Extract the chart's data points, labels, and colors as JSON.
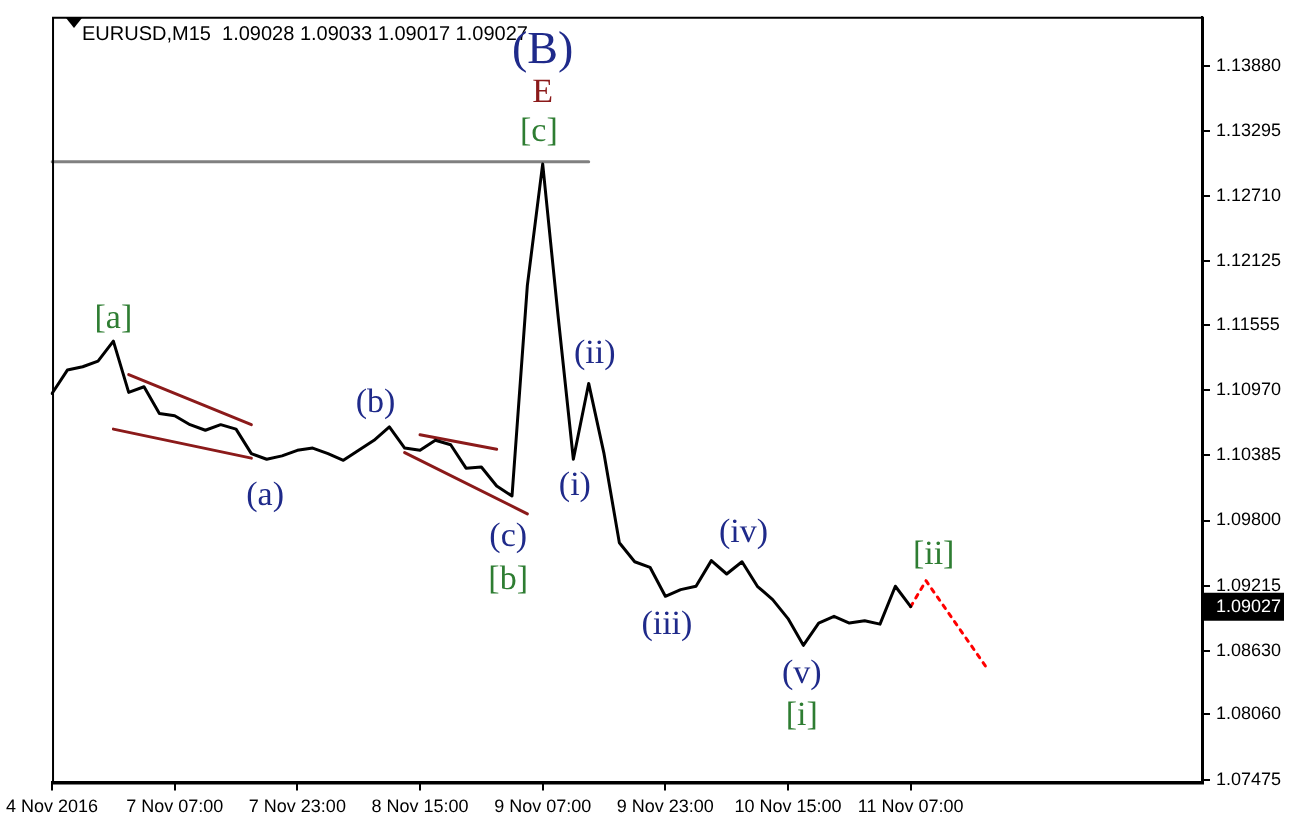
{
  "chart_data": {
    "type": "line",
    "title": "EURUSD,M15  1.09028 1.09033 1.09017 1.09027",
    "legend": false,
    "grid": false,
    "marker": "none",
    "categories": [
      "4 Nov 2016",
      null,
      null,
      null,
      null,
      null,
      null,
      null,
      "7 Nov 07:00",
      null,
      null,
      null,
      null,
      null,
      null,
      null,
      "7 Nov 23:00",
      null,
      null,
      null,
      null,
      null,
      null,
      null,
      "8 Nov 15:00",
      null,
      null,
      null,
      null,
      null,
      null,
      null,
      "9 Nov 07:00",
      null,
      null,
      null,
      null,
      null,
      null,
      null,
      "9 Nov 23:00",
      null,
      null,
      null,
      null,
      null,
      null,
      null,
      "10 Nov 15:00",
      null,
      null,
      null,
      null,
      null,
      null,
      null,
      "11 Nov 07:00",
      null,
      null,
      null,
      null,
      null,
      null,
      null,
      null,
      null,
      null,
      null,
      null,
      null,
      null,
      null,
      null,
      null,
      null,
      null
    ],
    "ylim": [
      1.0745,
      1.1432
    ],
    "yticks": [
      {
        "value": 1.1388,
        "label": "1.13880"
      },
      {
        "value": 1.13295,
        "label": "1.13295"
      },
      {
        "value": 1.1271,
        "label": "1.12710"
      },
      {
        "value": 1.12125,
        "label": "1.12125"
      },
      {
        "value": 1.11555,
        "label": "1.11555"
      },
      {
        "value": 1.1097,
        "label": "1.10970"
      },
      {
        "value": 1.10385,
        "label": "1.10385"
      },
      {
        "value": 1.098,
        "label": "1.09800"
      },
      {
        "value": 1.09215,
        "label": "1.09215"
      },
      {
        "value": 1.09027,
        "label": "1.09027"
      },
      {
        "value": 1.0863,
        "label": "1.08630"
      },
      {
        "value": 1.0806,
        "label": "1.08060"
      },
      {
        "value": 1.07475,
        "label": "1.07475"
      }
    ],
    "series": [
      {
        "color": "#000000",
        "line_style": "solid",
        "values": [
          1.1094,
          1.1115,
          1.1118,
          1.1123,
          1.1141,
          1.1095,
          1.11,
          1.1076,
          1.1074,
          1.1066,
          1.1061,
          1.1066,
          1.1062,
          1.104,
          1.1035,
          1.1038,
          1.1043,
          1.1045,
          1.104,
          1.1034,
          1.1043,
          1.1052,
          1.1064,
          1.1045,
          1.1043,
          1.1052,
          1.1048,
          1.1027,
          1.1028,
          1.1011,
          1.1002,
          1.1191,
          1.13,
          1.1164,
          1.1035,
          1.1103,
          1.104,
          1.096,
          1.0943,
          1.0938,
          1.0912,
          1.0918,
          1.0921,
          1.0944,
          1.0932,
          1.0943,
          1.0921,
          1.0909,
          1.0892,
          1.0868,
          1.0888,
          1.0894,
          1.0888,
          1.089,
          1.0887,
          1.0921,
          1.09027,
          null,
          null,
          null,
          null,
          null,
          null,
          null,
          null,
          null,
          null,
          null,
          null,
          null,
          null,
          null,
          null,
          null,
          null,
          null
        ]
      },
      {
        "color": "#808080",
        "line_style": "solid",
        "values": [
          1.1302,
          null,
          null,
          null,
          null,
          null,
          null,
          null,
          null,
          null,
          null,
          null,
          null,
          null,
          null,
          null,
          null,
          null,
          null,
          null,
          null,
          null,
          null,
          null,
          null,
          null,
          null,
          null,
          null,
          null,
          null,
          null,
          null,
          null,
          null,
          1.1302,
          null,
          null,
          null,
          null,
          null,
          null,
          null,
          null,
          null,
          null,
          null,
          null,
          null,
          null,
          null,
          null,
          null,
          null,
          null,
          null,
          null,
          null,
          null,
          null,
          null,
          null,
          null,
          null,
          null,
          null,
          null,
          null,
          null,
          null,
          null,
          null,
          null,
          null,
          null,
          null
        ]
      },
      {
        "color": "#8b1a1a",
        "line_style": "solid",
        "values": [
          null,
          null,
          null,
          null,
          null,
          1.1111,
          null,
          null,
          null,
          null,
          null,
          null,
          null,
          1.1066,
          null,
          null,
          null,
          null,
          null,
          null,
          null,
          null,
          null,
          null,
          null,
          null,
          null,
          null,
          null,
          null,
          null,
          null,
          null,
          null,
          null,
          null,
          null,
          null,
          null,
          null,
          null,
          null,
          null,
          null,
          null,
          null,
          null,
          null,
          null,
          null,
          null,
          null,
          null,
          null,
          null,
          null,
          null,
          null,
          null,
          null,
          null,
          null,
          null,
          null,
          null,
          null,
          null,
          null,
          null,
          null,
          null,
          null,
          null,
          null,
          null,
          null
        ]
      },
      {
        "color": "#8b1a1a",
        "line_style": "solid",
        "values": [
          null,
          null,
          null,
          null,
          1.1062,
          null,
          null,
          null,
          null,
          null,
          null,
          null,
          null,
          1.1036,
          null,
          null,
          null,
          null,
          null,
          null,
          null,
          null,
          null,
          null,
          null,
          null,
          null,
          null,
          null,
          null,
          null,
          null,
          null,
          null,
          null,
          null,
          null,
          null,
          null,
          null,
          null,
          null,
          null,
          null,
          null,
          null,
          null,
          null,
          null,
          null,
          null,
          null,
          null,
          null,
          null,
          null,
          null,
          null,
          null,
          null,
          null,
          null,
          null,
          null,
          null,
          null,
          null,
          null,
          null,
          null,
          null,
          null,
          null,
          null,
          null,
          null
        ]
      },
      {
        "color": "#8b1a1a",
        "line_style": "solid",
        "values": [
          null,
          null,
          null,
          null,
          null,
          null,
          null,
          null,
          null,
          null,
          null,
          null,
          null,
          null,
          null,
          null,
          null,
          null,
          null,
          null,
          null,
          null,
          null,
          null,
          1.1057,
          null,
          null,
          null,
          null,
          1.1044,
          null,
          null,
          null,
          null,
          null,
          null,
          null,
          null,
          null,
          null,
          null,
          null,
          null,
          null,
          null,
          null,
          null,
          null,
          null,
          null,
          null,
          null,
          null,
          null,
          null,
          null,
          null,
          null,
          null,
          null,
          null,
          null,
          null,
          null,
          null,
          null,
          null,
          null,
          null,
          null,
          null,
          null,
          null,
          null,
          null,
          null
        ]
      },
      {
        "color": "#8b1a1a",
        "line_style": "solid",
        "values": [
          null,
          null,
          null,
          null,
          null,
          null,
          null,
          null,
          null,
          null,
          null,
          null,
          null,
          null,
          null,
          null,
          null,
          null,
          null,
          null,
          null,
          null,
          null,
          1.1041,
          null,
          null,
          null,
          null,
          null,
          null,
          null,
          1.0986,
          null,
          null,
          null,
          null,
          null,
          null,
          null,
          null,
          null,
          null,
          null,
          null,
          null,
          null,
          null,
          null,
          null,
          null,
          null,
          null,
          null,
          null,
          null,
          null,
          null,
          null,
          null,
          null,
          null,
          null,
          null,
          null,
          null,
          null,
          null,
          null,
          null,
          null,
          null,
          null,
          null,
          null,
          null,
          null
        ]
      },
      {
        "color": "#ff0000",
        "line_style": "dotted",
        "values": [
          null,
          null,
          null,
          null,
          null,
          null,
          null,
          null,
          null,
          null,
          null,
          null,
          null,
          null,
          null,
          null,
          null,
          null,
          null,
          null,
          null,
          null,
          null,
          null,
          null,
          null,
          null,
          null,
          null,
          null,
          null,
          null,
          null,
          null,
          null,
          null,
          null,
          null,
          null,
          null,
          null,
          null,
          null,
          null,
          null,
          null,
          null,
          null,
          null,
          null,
          null,
          null,
          null,
          null,
          null,
          null,
          1.09027,
          1.0926,
          null,
          null,
          null,
          1.0847,
          null,
          null,
          null,
          null,
          null,
          null,
          null,
          null,
          null,
          null,
          null,
          null,
          null,
          null
        ]
      }
    ],
    "annotations": [
      "(B)",
      "E",
      "[c]",
      "[a]",
      "(b)",
      "(a)",
      "(c)",
      "[b]",
      "(ii)",
      "(i)",
      "(iii)",
      "(iv)",
      "(v)",
      "[i]",
      "[ii]"
    ]
  }
}
